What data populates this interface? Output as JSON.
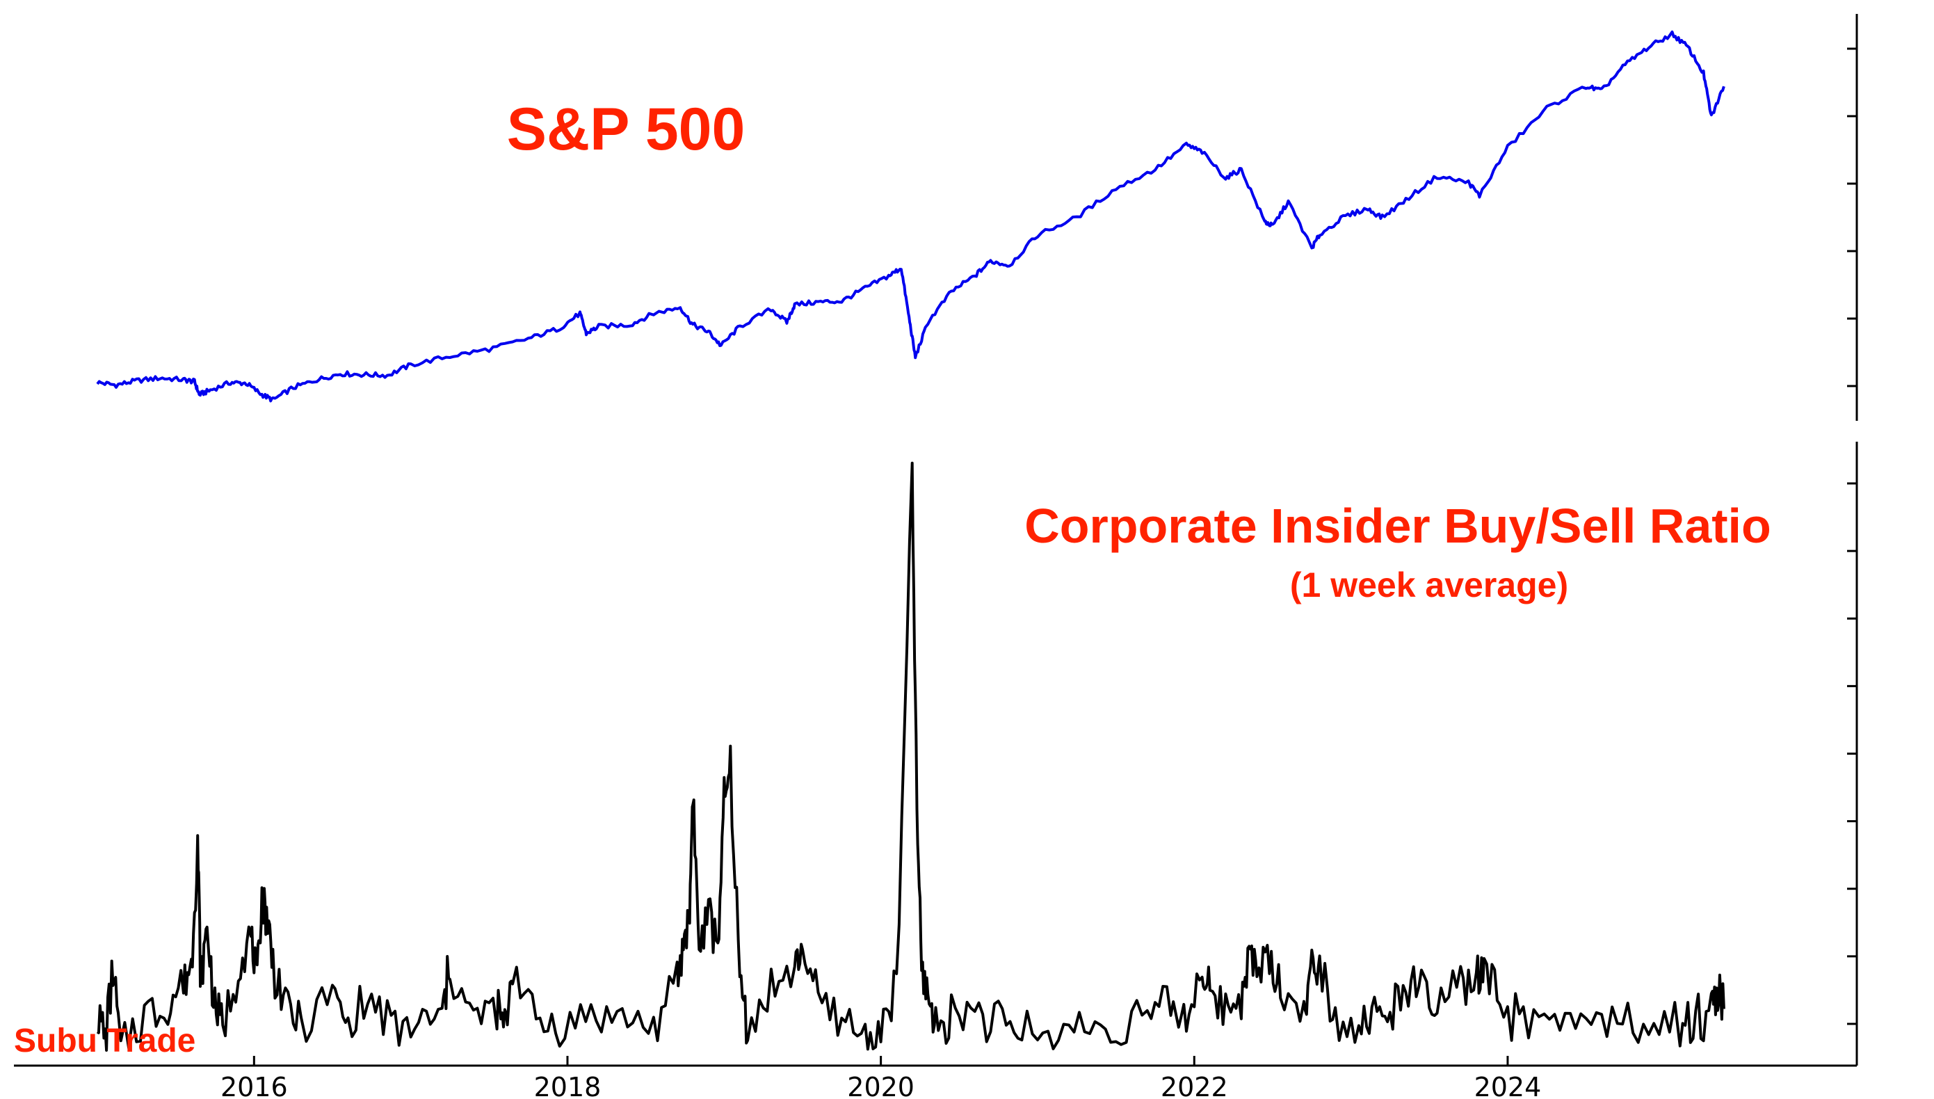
{
  "watermark": "Subu Trade",
  "colors": {
    "title": "#ff2200",
    "sp500_line": "#0000ee",
    "insider_line": "#000000",
    "axis": "#000000",
    "background": "#ffffff"
  },
  "chart_data": [
    {
      "type": "line",
      "title": "S&P 500",
      "xlabel": "",
      "ylabel": "",
      "y_tick_labels_shown": false,
      "grid": false,
      "xlim": [
        2015.0,
        2025.7
      ],
      "ylim": [
        1700,
        6200
      ],
      "series": [
        {
          "color": "#0000ee",
          "x": [
            2015.0,
            2015.12,
            2015.25,
            2015.4,
            2015.55,
            2015.62,
            2015.65,
            2015.72,
            2015.85,
            2015.95,
            2016.05,
            2016.12,
            2016.25,
            2016.4,
            2016.55,
            2016.7,
            2016.85,
            2017.0,
            2017.25,
            2017.5,
            2017.75,
            2017.95,
            2018.08,
            2018.12,
            2018.2,
            2018.4,
            2018.55,
            2018.72,
            2018.8,
            2018.9,
            2018.98,
            2019.1,
            2019.3,
            2019.4,
            2019.45,
            2019.6,
            2019.75,
            2019.9,
            2020.05,
            2020.13,
            2020.18,
            2020.22,
            2020.3,
            2020.45,
            2020.6,
            2020.7,
            2020.82,
            2021.0,
            2021.25,
            2021.5,
            2021.75,
            2021.95,
            2022.05,
            2022.2,
            2022.3,
            2022.45,
            2022.5,
            2022.6,
            2022.75,
            2022.8,
            2022.95,
            2023.1,
            2023.2,
            2023.35,
            2023.55,
            2023.75,
            2023.82,
            2024.0,
            2024.25,
            2024.5,
            2024.6,
            2024.75,
            2024.9,
            2025.05,
            2025.15,
            2025.25,
            2025.3,
            2025.38
          ],
          "y": [
            2060,
            2030,
            2080,
            2110,
            2090,
            2070,
            1920,
            1970,
            2060,
            2050,
            1920,
            1860,
            2000,
            2090,
            2160,
            2150,
            2140,
            2260,
            2360,
            2440,
            2560,
            2680,
            2850,
            2620,
            2700,
            2720,
            2850,
            2920,
            2720,
            2640,
            2480,
            2700,
            2900,
            2750,
            2950,
            2980,
            2990,
            3140,
            3280,
            3370,
            2800,
            2350,
            2750,
            3100,
            3280,
            3450,
            3400,
            3750,
            3950,
            4280,
            4500,
            4780,
            4700,
            4400,
            4500,
            3900,
            3850,
            4130,
            3600,
            3750,
            3950,
            4050,
            3950,
            4150,
            4420,
            4350,
            4200,
            4750,
            5200,
            5450,
            5400,
            5700,
            5900,
            6050,
            5900,
            5600,
            5100,
            5450
          ]
        }
      ]
    },
    {
      "type": "line",
      "title": "Corporate Insider Buy/Sell Ratio",
      "subtitle": "(1 week average)",
      "xlabel": "",
      "ylabel": "",
      "y_tick_labels_shown": false,
      "grid": false,
      "xlim": [
        2015.0,
        2025.7
      ],
      "ylim": [
        -0.05,
        1.05
      ],
      "x_tick_labels": [
        "2016",
        "2018",
        "2020",
        "2022",
        "2024"
      ],
      "x_ticks": [
        2016,
        2018,
        2020,
        2022,
        2024
      ],
      "series": [
        {
          "color": "#000000",
          "x": [
            2015.0,
            2015.05,
            2015.1,
            2015.15,
            2015.3,
            2015.45,
            2015.55,
            2015.6,
            2015.64,
            2015.66,
            2015.7,
            2015.75,
            2015.8,
            2015.9,
            2015.98,
            2016.02,
            2016.05,
            2016.08,
            2016.12,
            2016.2,
            2016.3,
            2016.5,
            2016.6,
            2016.75,
            2016.9,
            2017.05,
            2017.2,
            2017.25,
            2017.4,
            2017.55,
            2017.6,
            2017.65,
            2017.8,
            2017.95,
            2018.15,
            2018.35,
            2018.55,
            2018.7,
            2018.74,
            2018.78,
            2018.8,
            2018.84,
            2018.9,
            2018.96,
            2019.0,
            2019.04,
            2019.1,
            2019.15,
            2019.3,
            2019.45,
            2019.5,
            2019.6,
            2019.75,
            2019.9,
            2020.0,
            2020.1,
            2020.2,
            2020.23,
            2020.26,
            2020.3,
            2020.35,
            2020.45,
            2020.6,
            2020.75,
            2020.9,
            2021.1,
            2021.3,
            2021.5,
            2021.7,
            2021.85,
            2021.95,
            2022.05,
            2022.1,
            2022.2,
            2022.3,
            2022.35,
            2022.4,
            2022.48,
            2022.55,
            2022.7,
            2022.75,
            2022.8,
            2022.9,
            2023.05,
            2023.15,
            2023.25,
            2023.35,
            2023.45,
            2023.55,
            2023.7,
            2023.8,
            2023.85,
            2023.95,
            2024.1,
            2024.3,
            2024.5,
            2024.7,
            2024.9,
            2025.1,
            2025.2,
            2025.3,
            2025.34,
            2025.38
          ],
          "y": [
            0.05,
            0.0,
            0.12,
            -0.02,
            0.05,
            0.06,
            0.1,
            0.13,
            0.35,
            0.08,
            0.2,
            0.05,
            0.02,
            0.12,
            0.18,
            0.1,
            0.25,
            0.22,
            0.13,
            0.06,
            0.02,
            0.08,
            0.02,
            0.06,
            0.01,
            0.02,
            0.04,
            0.12,
            0.03,
            0.06,
            0.01,
            0.13,
            0.03,
            0.02,
            0.04,
            0.03,
            0.02,
            0.09,
            0.17,
            0.22,
            0.44,
            0.15,
            0.22,
            0.17,
            0.41,
            0.47,
            0.1,
            0.02,
            0.08,
            0.12,
            0.16,
            0.06,
            0.03,
            0.0,
            0.02,
            0.08,
            0.98,
            0.4,
            0.12,
            0.08,
            0.02,
            0.04,
            0.05,
            0.02,
            0.01,
            0.0,
            0.02,
            0.01,
            0.04,
            0.05,
            0.03,
            0.12,
            0.07,
            0.05,
            0.08,
            0.15,
            0.12,
            0.14,
            0.08,
            0.04,
            0.12,
            0.15,
            0.03,
            0.02,
            0.04,
            0.03,
            0.1,
            0.07,
            0.05,
            0.08,
            0.1,
            0.11,
            0.05,
            0.02,
            0.02,
            0.03,
            0.02,
            0.02,
            0.01,
            0.02,
            0.06,
            0.07,
            0.05
          ]
        }
      ]
    }
  ]
}
